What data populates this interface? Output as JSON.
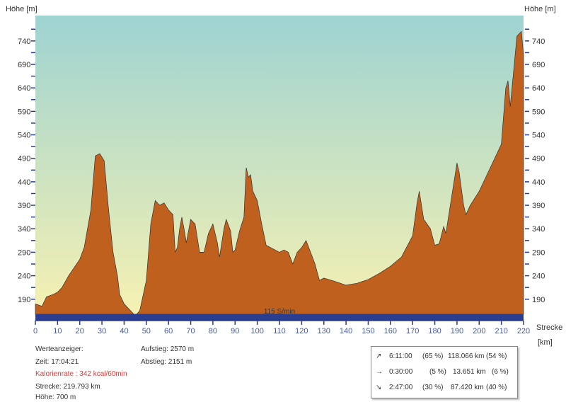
{
  "chart_data": {
    "type": "area",
    "ylabel": "Höhe [m]",
    "xlabel": "Strecke",
    "xunit": "[km]",
    "xlim": [
      0,
      220
    ],
    "ylim": [
      158,
      794
    ],
    "xticks": [
      0,
      10,
      20,
      30,
      40,
      50,
      60,
      70,
      80,
      90,
      100,
      110,
      120,
      130,
      140,
      150,
      160,
      170,
      180,
      190,
      200,
      210,
      220
    ],
    "yticks": [
      190,
      240,
      290,
      340,
      390,
      440,
      490,
      540,
      590,
      640,
      690,
      740
    ],
    "band_label": "115 S/min",
    "colors": {
      "fill": "#c0601e",
      "band": "#2b3d8f",
      "sky_top": "#9ed3d2",
      "sky_bottom": "#f6f1b2"
    },
    "points": [
      [
        0,
        180
      ],
      [
        3,
        175
      ],
      [
        5,
        195
      ],
      [
        8,
        200
      ],
      [
        10,
        205
      ],
      [
        12,
        215
      ],
      [
        15,
        240
      ],
      [
        20,
        275
      ],
      [
        22,
        300
      ],
      [
        25,
        380
      ],
      [
        27,
        495
      ],
      [
        29,
        500
      ],
      [
        31,
        485
      ],
      [
        33,
        380
      ],
      [
        35,
        290
      ],
      [
        37,
        240
      ],
      [
        38,
        200
      ],
      [
        40,
        180
      ],
      [
        42,
        170
      ],
      [
        45,
        155
      ],
      [
        47,
        165
      ],
      [
        50,
        230
      ],
      [
        52,
        350
      ],
      [
        54,
        400
      ],
      [
        56,
        390
      ],
      [
        58,
        395
      ],
      [
        60,
        380
      ],
      [
        62,
        370
      ],
      [
        63,
        290
      ],
      [
        64,
        300
      ],
      [
        65,
        340
      ],
      [
        66,
        365
      ],
      [
        67,
        340
      ],
      [
        68,
        310
      ],
      [
        70,
        360
      ],
      [
        72,
        350
      ],
      [
        74,
        290
      ],
      [
        76,
        290
      ],
      [
        78,
        330
      ],
      [
        80,
        350
      ],
      [
        82,
        310
      ],
      [
        83,
        280
      ],
      [
        85,
        340
      ],
      [
        86,
        360
      ],
      [
        88,
        335
      ],
      [
        89,
        290
      ],
      [
        90,
        295
      ],
      [
        92,
        335
      ],
      [
        94,
        365
      ],
      [
        95,
        470
      ],
      [
        96,
        450
      ],
      [
        97,
        455
      ],
      [
        98,
        420
      ],
      [
        100,
        400
      ],
      [
        102,
        350
      ],
      [
        104,
        305
      ],
      [
        110,
        290
      ],
      [
        112,
        295
      ],
      [
        114,
        290
      ],
      [
        116,
        265
      ],
      [
        118,
        290
      ],
      [
        120,
        300
      ],
      [
        122,
        315
      ],
      [
        124,
        290
      ],
      [
        126,
        265
      ],
      [
        128,
        230
      ],
      [
        130,
        235
      ],
      [
        135,
        228
      ],
      [
        140,
        220
      ],
      [
        145,
        224
      ],
      [
        150,
        232
      ],
      [
        155,
        245
      ],
      [
        160,
        260
      ],
      [
        165,
        280
      ],
      [
        170,
        325
      ],
      [
        172,
        395
      ],
      [
        173,
        420
      ],
      [
        175,
        360
      ],
      [
        178,
        340
      ],
      [
        180,
        305
      ],
      [
        182,
        308
      ],
      [
        184,
        345
      ],
      [
        185,
        330
      ],
      [
        188,
        420
      ],
      [
        190,
        480
      ],
      [
        191,
        460
      ],
      [
        193,
        390
      ],
      [
        194,
        370
      ],
      [
        196,
        390
      ],
      [
        200,
        420
      ],
      [
        205,
        470
      ],
      [
        210,
        520
      ],
      [
        212,
        640
      ],
      [
        213,
        655
      ],
      [
        214,
        600
      ],
      [
        216,
        700
      ],
      [
        217,
        750
      ],
      [
        219,
        760
      ],
      [
        220,
        710
      ]
    ]
  },
  "info": {
    "werteanzeiger": "Werteanzeiger:",
    "zeit": "Zeit: 17:04:21",
    "kalorien": "Kalorienrate : 342 kcal/60min",
    "strecke": "Strecke: 219.793 km",
    "hoehe": "Höhe: 700 m",
    "aufstieg": "Aufstieg: 2570 m",
    "abstieg": "Abstieg: 2151 m"
  },
  "summary": [
    {
      "icon": "↗",
      "time": "6:11:00",
      "tpct": "(65 %)",
      "dist": "118.066 km",
      "dpct": "(54 %)"
    },
    {
      "icon": "→",
      "time": "0:30:00",
      "tpct": "(5 %)",
      "dist": "13.651 km",
      "dpct": "(6 %)"
    },
    {
      "icon": "↘",
      "time": "2:47:00",
      "tpct": "(30 %)",
      "dist": "87.420 km",
      "dpct": "(40 %)"
    }
  ]
}
